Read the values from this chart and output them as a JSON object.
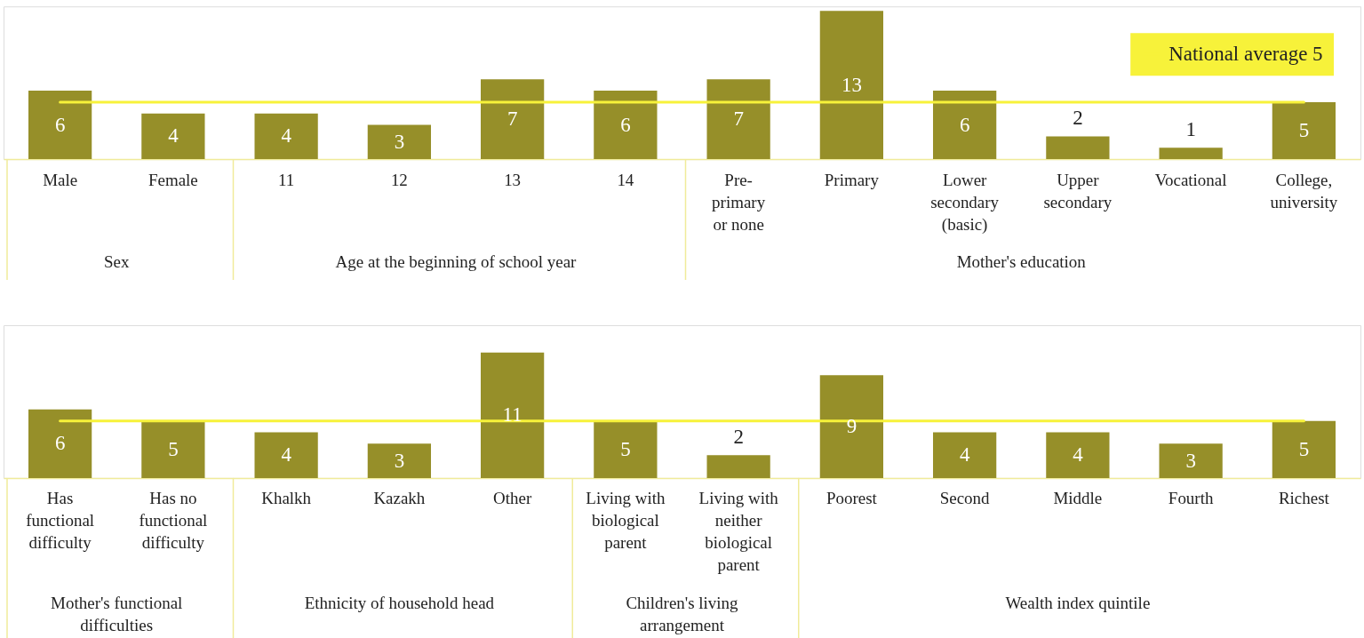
{
  "chart_data": [
    {
      "type": "bar",
      "categories": [
        "Male",
        "Female",
        "11",
        "12",
        "13",
        "14",
        "Pre-\nprimary\nor none",
        "Primary",
        "Lower\nsecondary\n(basic)",
        "Upper\nsecondary",
        "Vocational",
        "College,\nuniversity"
      ],
      "values": [
        6,
        4,
        4,
        3,
        7,
        6,
        7,
        13,
        6,
        2,
        1,
        5
      ],
      "color": "#968f29",
      "data_labels": true,
      "ref_lines": [
        {
          "axis": "y",
          "value": 5,
          "label": "National average 5",
          "color": "#f7f23a"
        }
      ],
      "annotations": [
        "Sex",
        "Age at the beginning of school year",
        "Mother's education"
      ]
    },
    {
      "type": "bar",
      "categories": [
        "Has\nfunctional\ndifficulty",
        "Has no\nfunctional\ndifficulty",
        "Khalkh",
        "Kazakh",
        "Other",
        "Living with\nbiological\nparent",
        "Living with\nneither\nbiological\nparent",
        "Poorest",
        "Second",
        "Middle",
        "Fourth",
        "Richest"
      ],
      "values": [
        6,
        5,
        4,
        3,
        11,
        5,
        2,
        9,
        4,
        4,
        3,
        5
      ],
      "color": "#968f29",
      "data_labels": true,
      "ref_lines": [
        {
          "axis": "y",
          "value": 5,
          "color": "#f7f23a"
        }
      ],
      "annotations": [
        "Mother's functional\ndifficulties",
        "Ethnicity of household head",
        "Children's living\narrangement",
        "Wealth index quintile"
      ]
    }
  ]
}
